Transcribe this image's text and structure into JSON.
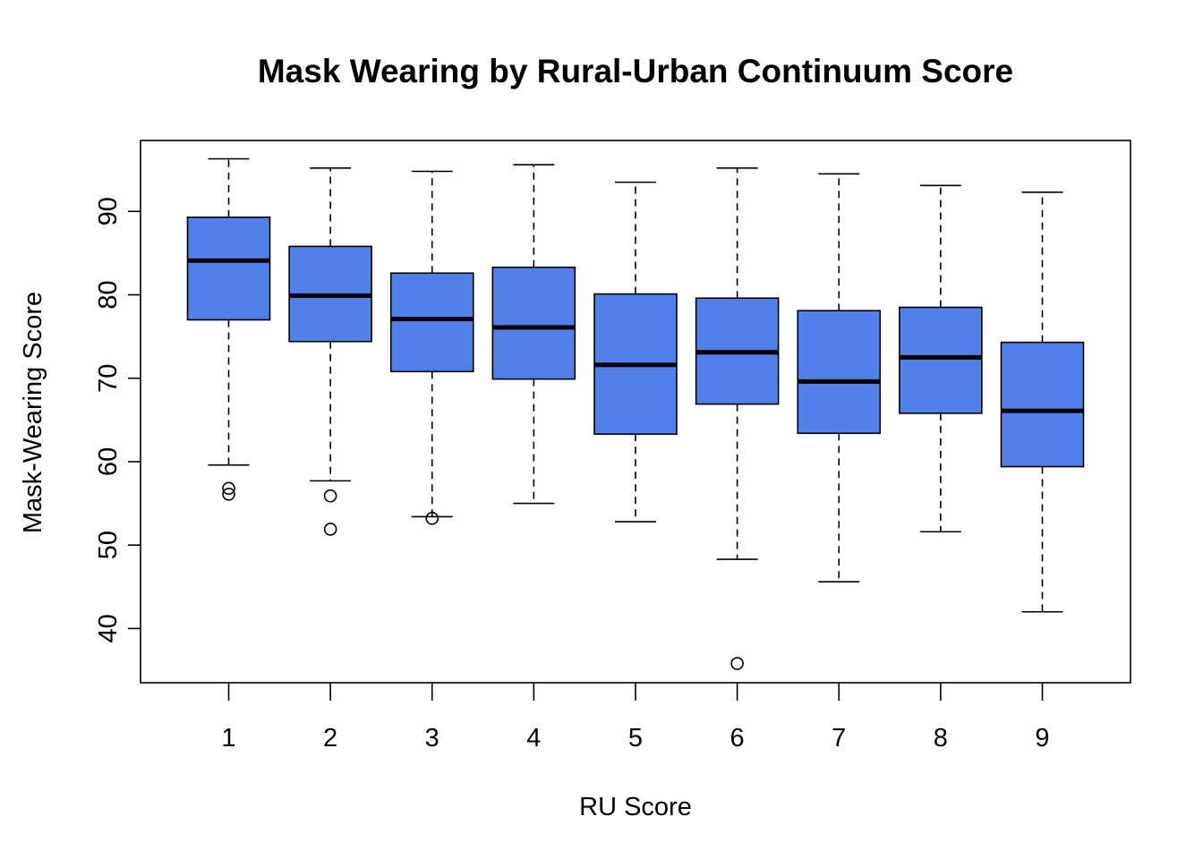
{
  "chart_data": {
    "type": "box",
    "title": "Mask Wearing by Rural-Urban Continuum Score",
    "xlabel": "RU Score",
    "ylabel": "Mask-Wearing Score",
    "ylim": [
      33.5,
      98.5
    ],
    "y_ticks": [
      40,
      50,
      60,
      70,
      80,
      90
    ],
    "box_color": "#5080E8",
    "categories": [
      "1",
      "2",
      "3",
      "4",
      "5",
      "6",
      "7",
      "8",
      "9"
    ],
    "boxes": [
      {
        "category": "1",
        "whisker_low": 59.6,
        "q1": 77.0,
        "median": 84.1,
        "q3": 89.3,
        "whisker_high": 96.3,
        "outliers": [
          56.1,
          56.8
        ]
      },
      {
        "category": "2",
        "whisker_low": 57.7,
        "q1": 74.4,
        "median": 79.9,
        "q3": 85.8,
        "whisker_high": 95.2,
        "outliers": [
          55.9,
          51.9
        ]
      },
      {
        "category": "3",
        "whisker_low": 53.4,
        "q1": 70.8,
        "median": 77.1,
        "q3": 82.6,
        "whisker_high": 94.8,
        "outliers": [
          53.2
        ]
      },
      {
        "category": "4",
        "whisker_low": 55.0,
        "q1": 69.9,
        "median": 76.1,
        "q3": 83.3,
        "whisker_high": 95.6,
        "outliers": []
      },
      {
        "category": "5",
        "whisker_low": 52.8,
        "q1": 63.3,
        "median": 71.6,
        "q3": 80.1,
        "whisker_high": 93.5,
        "outliers": []
      },
      {
        "category": "6",
        "whisker_low": 48.3,
        "q1": 66.9,
        "median": 73.1,
        "q3": 79.6,
        "whisker_high": 95.2,
        "outliers": [
          35.8
        ]
      },
      {
        "category": "7",
        "whisker_low": 45.6,
        "q1": 63.4,
        "median": 69.6,
        "q3": 78.1,
        "whisker_high": 94.5,
        "outliers": []
      },
      {
        "category": "8",
        "whisker_low": 51.6,
        "q1": 65.8,
        "median": 72.5,
        "q3": 78.5,
        "whisker_high": 93.1,
        "outliers": []
      },
      {
        "category": "9",
        "whisker_low": 42.0,
        "q1": 59.4,
        "median": 66.1,
        "q3": 74.3,
        "whisker_high": 92.3,
        "outliers": []
      }
    ]
  }
}
